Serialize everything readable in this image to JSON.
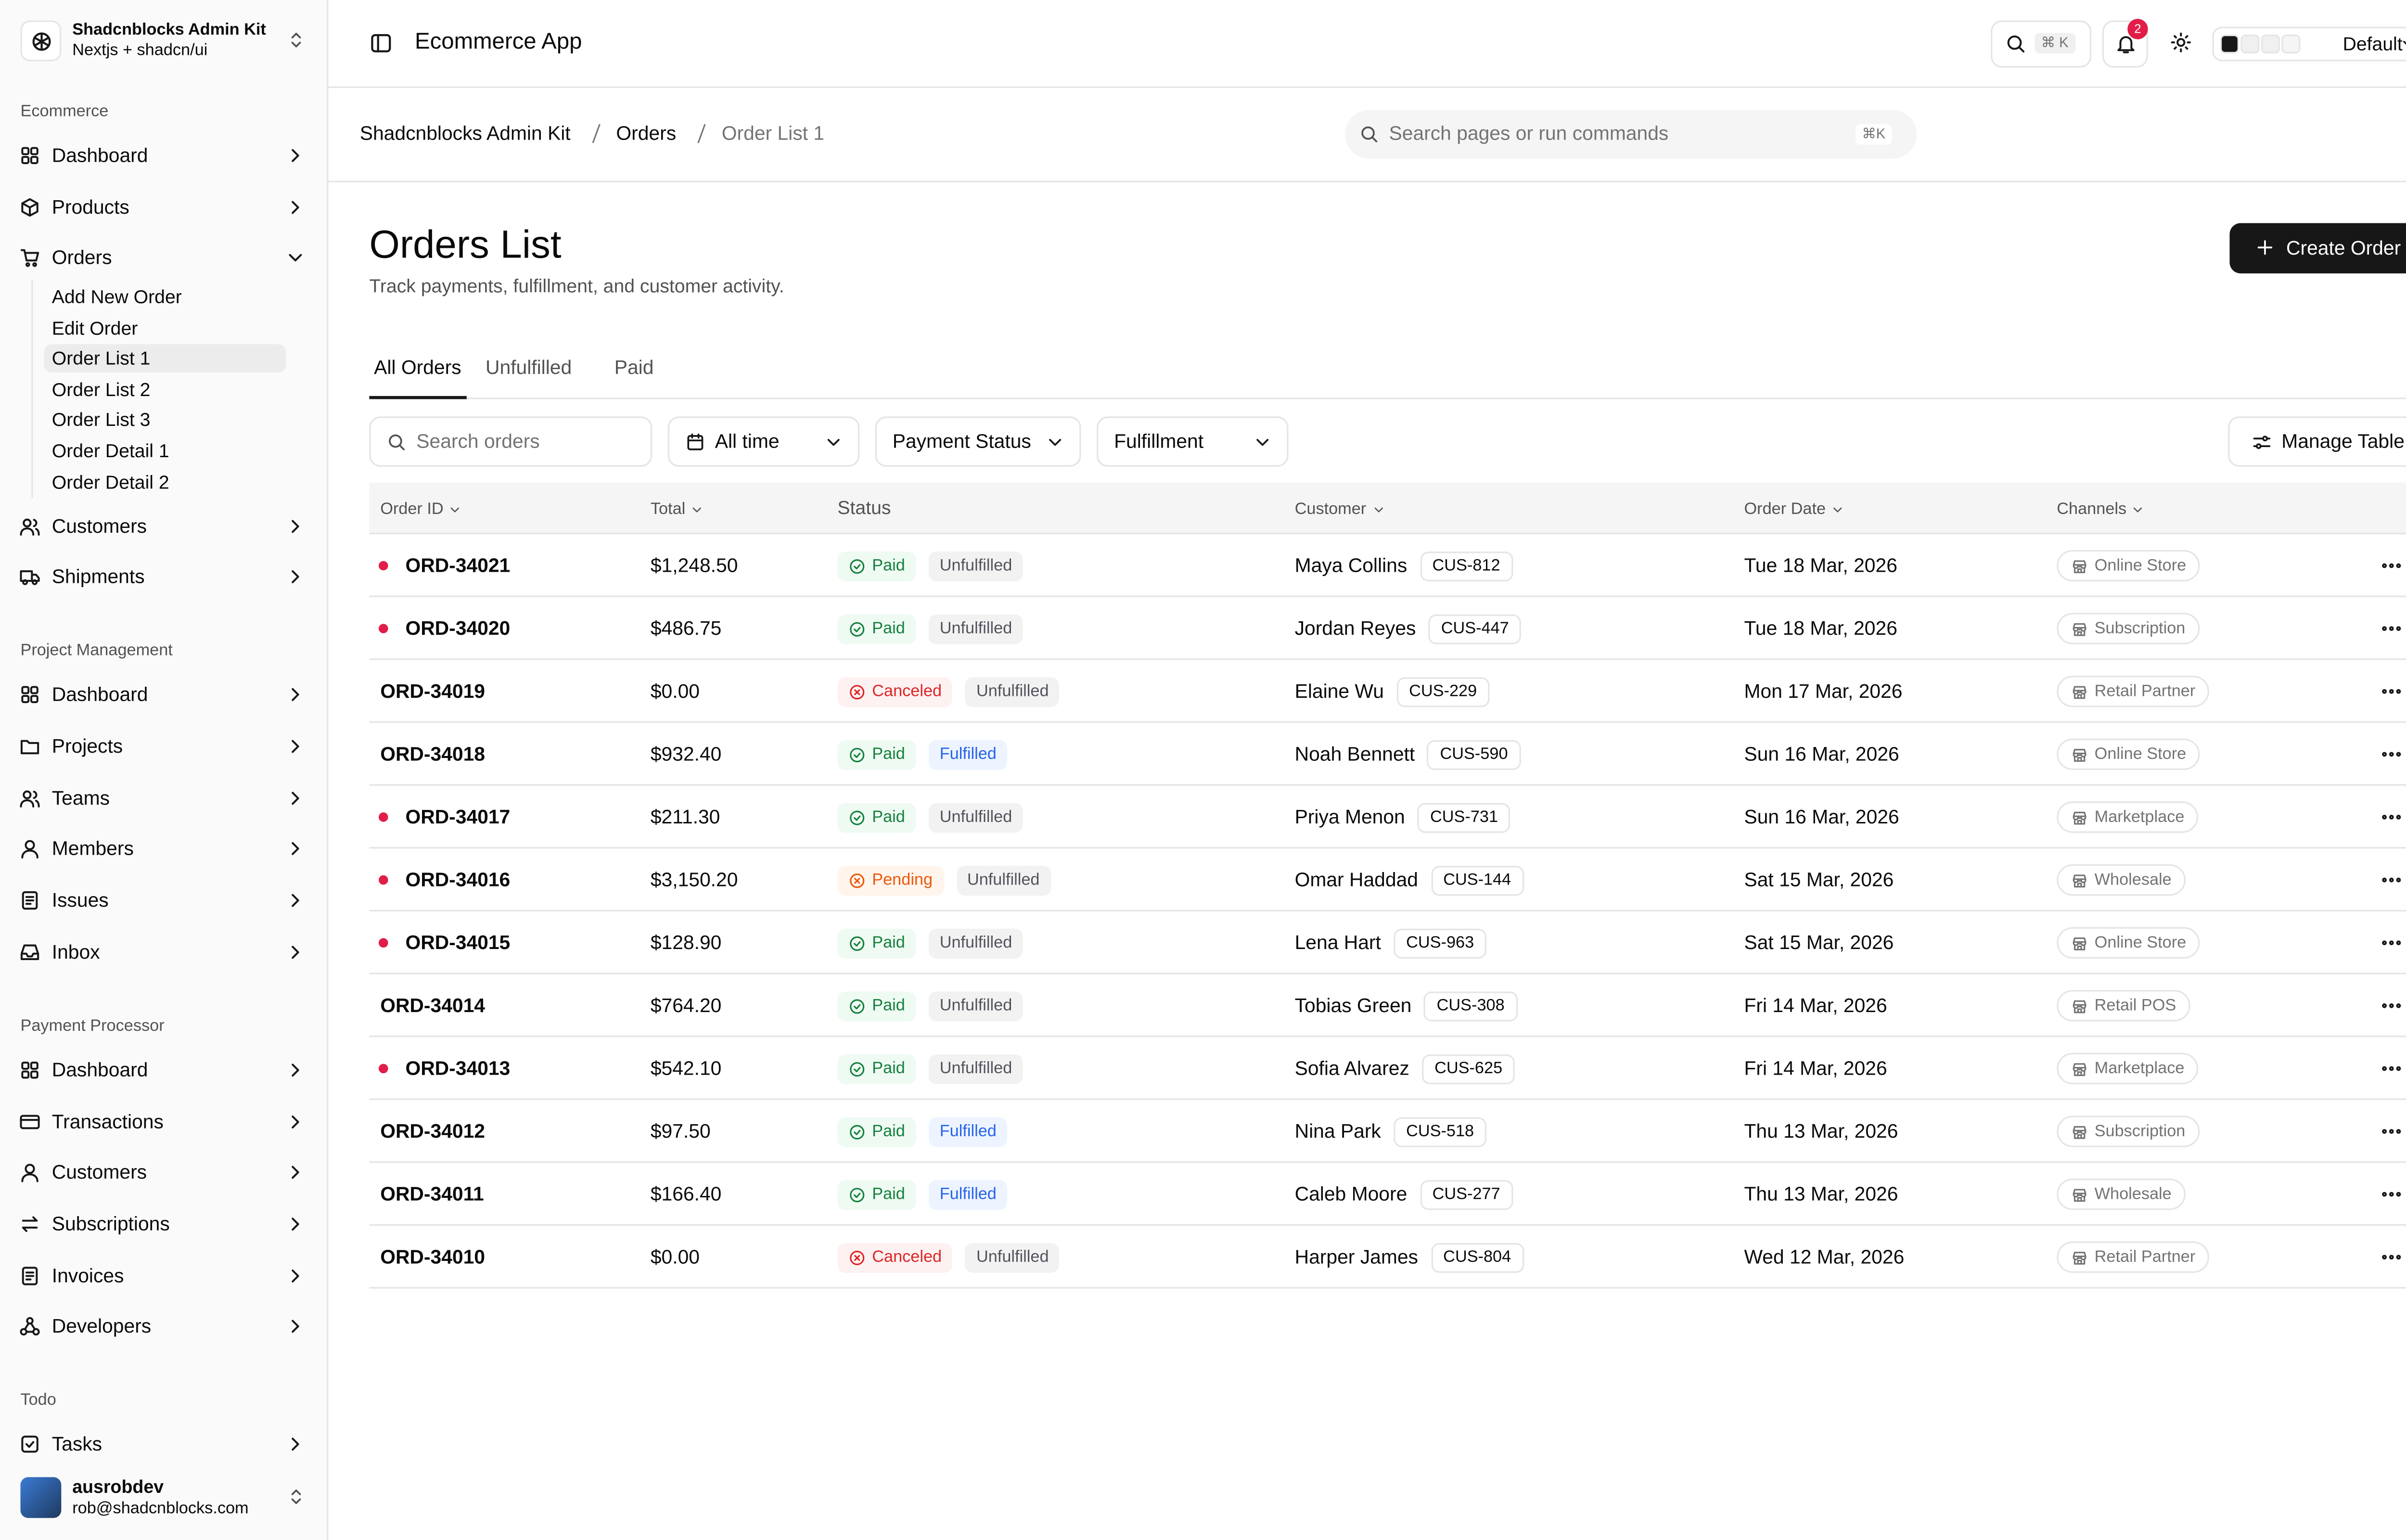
{
  "sidebar": {
    "title": "Shadcnblocks Admin Kit",
    "subtitle": "Nextjs + shadcn/ui",
    "groups": [
      {
        "label": "Ecommerce",
        "items": [
          {
            "label": "Dashboard"
          },
          {
            "label": "Products"
          },
          {
            "label": "Orders",
            "expanded": true,
            "children": [
              "Add New Order",
              "Edit Order",
              "Order List 1",
              "Order List 2",
              "Order List 3",
              "Order Detail 1",
              "Order Detail 2"
            ],
            "active_child": 2
          },
          {
            "label": "Customers"
          },
          {
            "label": "Shipments"
          }
        ]
      },
      {
        "label": "Project Management",
        "items": [
          {
            "label": "Dashboard"
          },
          {
            "label": "Projects"
          },
          {
            "label": "Teams"
          },
          {
            "label": "Members"
          },
          {
            "label": "Issues"
          },
          {
            "label": "Inbox"
          }
        ]
      },
      {
        "label": "Payment Processor",
        "items": [
          {
            "label": "Dashboard"
          },
          {
            "label": "Transactions"
          },
          {
            "label": "Customers"
          },
          {
            "label": "Subscriptions"
          },
          {
            "label": "Invoices"
          },
          {
            "label": "Developers"
          }
        ]
      },
      {
        "label": "Todo",
        "items": [
          {
            "label": "Tasks"
          }
        ]
      }
    ],
    "user": {
      "name": "ausrobdev",
      "email": "rob@shadcnblocks.com"
    }
  },
  "topbar": {
    "title": "Ecommerce App",
    "search_shortcut": "⌘ K",
    "notifications": "2",
    "theme": "Default"
  },
  "breadcrumb": {
    "items": [
      "Shadcnblocks Admin Kit",
      "Orders",
      "Order List 1"
    ],
    "search_placeholder": "Search pages or run commands",
    "search_shortcut": "⌘K"
  },
  "page": {
    "title": "Orders List",
    "subtitle": "Track payments, fulfillment, and customer activity.",
    "action": "Create Order",
    "tabs": [
      "All Orders",
      "Unfulfilled",
      "Paid"
    ],
    "active_tab": 0,
    "filters": {
      "search_placeholder": "Search orders",
      "date": "All time",
      "payment": "Payment Status",
      "fulfillment": "Fulfillment",
      "manage": "Manage Table"
    }
  },
  "table": {
    "columns": [
      {
        "label": "Order ID",
        "sortable": true
      },
      {
        "label": "Total",
        "sortable": true
      },
      {
        "label": "Status",
        "sortable": false
      },
      {
        "label": "Customer",
        "sortable": true
      },
      {
        "label": "Order Date",
        "sortable": true
      },
      {
        "label": "Channels",
        "sortable": true
      }
    ],
    "badge_styles": {
      "Paid": {
        "bg": "#effaf3",
        "fg": "#15803d"
      },
      "Canceled": {
        "bg": "#fef1f1",
        "fg": "#dc2626"
      },
      "Pending": {
        "bg": "#fff5ec",
        "fg": "#ea580c"
      },
      "Unfulfilled": {
        "bg": "#f2f2f3",
        "fg": "#52525b"
      },
      "Fulfilled": {
        "bg": "#eef4ff",
        "fg": "#2563eb"
      }
    },
    "rows": [
      {
        "id": "ORD-34021",
        "flagged": true,
        "total": "$1,248.50",
        "payment": "Paid",
        "fulfillment": "Unfulfilled",
        "customer": "Maya Collins",
        "customer_id": "CUS-812",
        "date": "Tue 18 Mar, 2026",
        "channel": "Online Store"
      },
      {
        "id": "ORD-34020",
        "flagged": true,
        "total": "$486.75",
        "payment": "Paid",
        "fulfillment": "Unfulfilled",
        "customer": "Jordan Reyes",
        "customer_id": "CUS-447",
        "date": "Tue 18 Mar, 2026",
        "channel": "Subscription"
      },
      {
        "id": "ORD-34019",
        "flagged": false,
        "total": "$0.00",
        "payment": "Canceled",
        "fulfillment": "Unfulfilled",
        "customer": "Elaine Wu",
        "customer_id": "CUS-229",
        "date": "Mon 17 Mar, 2026",
        "channel": "Retail Partner"
      },
      {
        "id": "ORD-34018",
        "flagged": false,
        "total": "$932.40",
        "payment": "Paid",
        "fulfillment": "Fulfilled",
        "customer": "Noah Bennett",
        "customer_id": "CUS-590",
        "date": "Sun 16 Mar, 2026",
        "channel": "Online Store"
      },
      {
        "id": "ORD-34017",
        "flagged": true,
        "total": "$211.30",
        "payment": "Paid",
        "fulfillment": "Unfulfilled",
        "customer": "Priya Menon",
        "customer_id": "CUS-731",
        "date": "Sun 16 Mar, 2026",
        "channel": "Marketplace"
      },
      {
        "id": "ORD-34016",
        "flagged": true,
        "total": "$3,150.20",
        "payment": "Pending",
        "fulfillment": "Unfulfilled",
        "customer": "Omar Haddad",
        "customer_id": "CUS-144",
        "date": "Sat 15 Mar, 2026",
        "channel": "Wholesale"
      },
      {
        "id": "ORD-34015",
        "flagged": true,
        "total": "$128.90",
        "payment": "Paid",
        "fulfillment": "Unfulfilled",
        "customer": "Lena Hart",
        "customer_id": "CUS-963",
        "date": "Sat 15 Mar, 2026",
        "channel": "Online Store"
      },
      {
        "id": "ORD-34014",
        "flagged": false,
        "total": "$764.20",
        "payment": "Paid",
        "fulfillment": "Unfulfilled",
        "customer": "Tobias Green",
        "customer_id": "CUS-308",
        "date": "Fri 14 Mar, 2026",
        "channel": "Retail POS"
      },
      {
        "id": "ORD-34013",
        "flagged": true,
        "total": "$542.10",
        "payment": "Paid",
        "fulfillment": "Unfulfilled",
        "customer": "Sofia Alvarez",
        "customer_id": "CUS-625",
        "date": "Fri 14 Mar, 2026",
        "channel": "Marketplace"
      },
      {
        "id": "ORD-34012",
        "flagged": false,
        "total": "$97.50",
        "payment": "Paid",
        "fulfillment": "Fulfilled",
        "customer": "Nina Park",
        "customer_id": "CUS-518",
        "date": "Thu 13 Mar, 2026",
        "channel": "Subscription"
      },
      {
        "id": "ORD-34011",
        "flagged": false,
        "total": "$166.40",
        "payment": "Paid",
        "fulfillment": "Fulfilled",
        "customer": "Caleb Moore",
        "customer_id": "CUS-277",
        "date": "Thu 13 Mar, 2026",
        "channel": "Wholesale"
      },
      {
        "id": "ORD-34010",
        "flagged": false,
        "total": "$0.00",
        "payment": "Canceled",
        "fulfillment": "Unfulfilled",
        "customer": "Harper James",
        "customer_id": "CUS-804",
        "date": "Wed 12 Mar, 2026",
        "channel": "Retail Partner"
      }
    ]
  }
}
